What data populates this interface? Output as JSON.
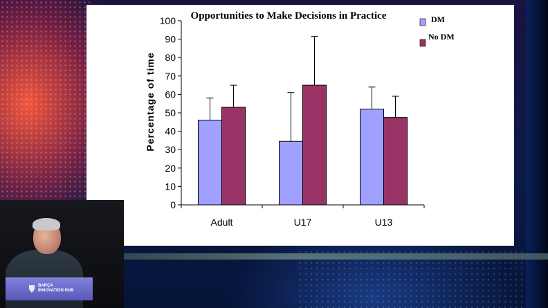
{
  "scene": {
    "lectern_text": [
      "BARÇA",
      "INNOVATION HUB"
    ]
  },
  "chart_data": {
    "type": "bar",
    "title": "Opportunities to Make Decisions in Practice",
    "xlabel": "",
    "ylabel": "Percentage of time",
    "ylim": [
      0,
      100
    ],
    "yticks": [
      0,
      10,
      20,
      30,
      40,
      50,
      60,
      70,
      80,
      90,
      100
    ],
    "categories": [
      "Adult",
      "U17",
      "U13"
    ],
    "series": [
      {
        "name": "DM",
        "color": "#a0a0ff",
        "values": [
          46,
          34.5,
          52
        ],
        "error_upper": [
          58,
          61,
          64
        ]
      },
      {
        "name": "No DM",
        "color": "#993366",
        "values": [
          53,
          65,
          47.5
        ],
        "error_upper": [
          65,
          91.5,
          59
        ]
      }
    ],
    "legend_position": "top-right",
    "grid": false
  }
}
